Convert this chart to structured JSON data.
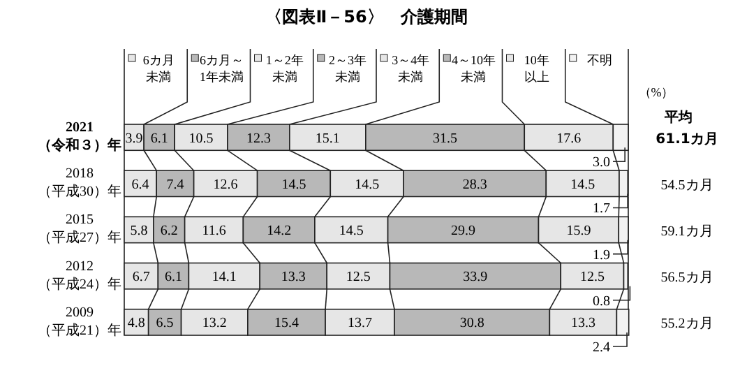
{
  "chart_data": {
    "type": "bar",
    "orientation": "horizontal",
    "stacked": true,
    "title": "〈図表Ⅱ－56〉　介護期間",
    "categories": [
      "2021\n（令和３）年",
      "2018\n（平成30）年",
      "2015\n（平成27）年",
      "2012\n（平成24）年",
      "2009\n（平成21）年"
    ],
    "xlim": [
      0,
      100
    ],
    "data_labels": true,
    "legend": "top",
    "tick_labels": false,
    "series": [
      {
        "name": "6カ月未満",
        "color": "#e6e6e6",
        "values": [
          3.9,
          6.4,
          5.8,
          6.7,
          4.8
        ]
      },
      {
        "name": "6カ月～1年未満",
        "color": "#b8b8b8",
        "values": [
          6.1,
          7.4,
          6.2,
          6.1,
          6.5
        ]
      },
      {
        "name": "1～2年未満",
        "color": "#e6e6e6",
        "values": [
          10.5,
          12.6,
          11.6,
          14.1,
          13.2
        ]
      },
      {
        "name": "2～3年未満",
        "color": "#b8b8b8",
        "values": [
          12.3,
          14.5,
          14.2,
          13.3,
          15.4
        ]
      },
      {
        "name": "3～4年未満",
        "color": "#e6e6e6",
        "values": [
          15.1,
          14.5,
          14.5,
          12.5,
          13.7
        ]
      },
      {
        "name": "4～10年未満",
        "color": "#b8b8b8",
        "values": [
          31.5,
          28.3,
          29.9,
          33.9,
          30.8
        ]
      },
      {
        "name": "10年以上",
        "color": "#e6e6e6",
        "values": [
          17.6,
          14.5,
          15.9,
          12.5,
          13.3
        ]
      },
      {
        "name": "不明",
        "color": "#f2f2f2",
        "values": [
          3.0,
          1.7,
          1.9,
          0.8,
          2.4
        ],
        "value_labels": [
          "3.0",
          "1.7",
          "1.9",
          "0.8",
          "2.4"
        ]
      }
    ],
    "annotations": [
      "（%）",
      "平均",
      "61.1カ月",
      "54.5カ月",
      "59.1カ月",
      "56.5カ月",
      "55.2カ月"
    ]
  }
}
